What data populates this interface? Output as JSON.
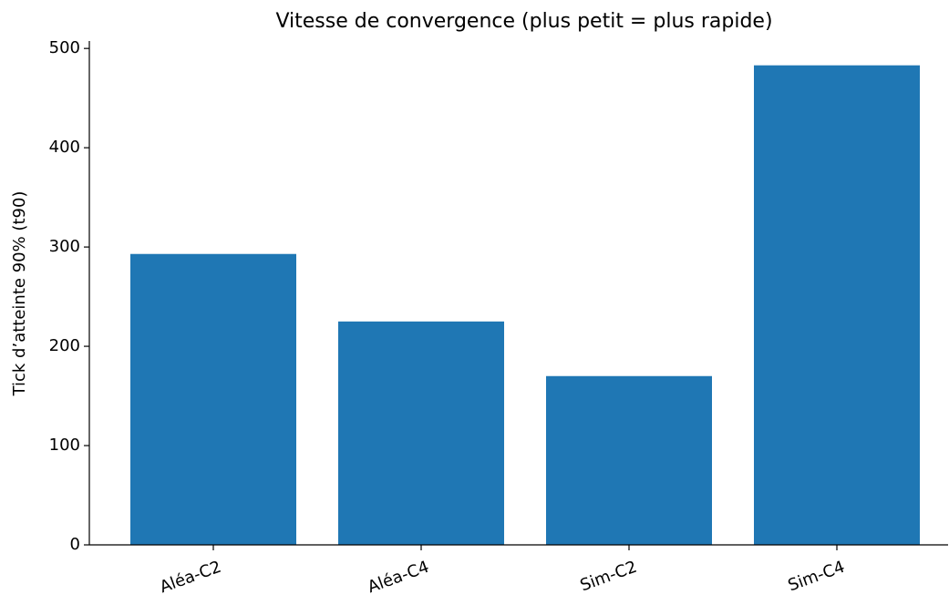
{
  "chart_data": {
    "type": "bar",
    "title": "Vitesse de convergence (plus petit = plus rapide)",
    "y_label": "Tick d’atteinte 90% (t90)",
    "categories": [
      "Aléa-C2",
      "Aléa-C4",
      "Sim-C2",
      "Sim-C4"
    ],
    "values": [
      293,
      225,
      170,
      483
    ],
    "color": "#1f77b4",
    "ylim": [
      0,
      507.5
    ],
    "yticks": [
      0,
      100,
      200,
      300,
      400,
      500
    ],
    "grid": false
  }
}
